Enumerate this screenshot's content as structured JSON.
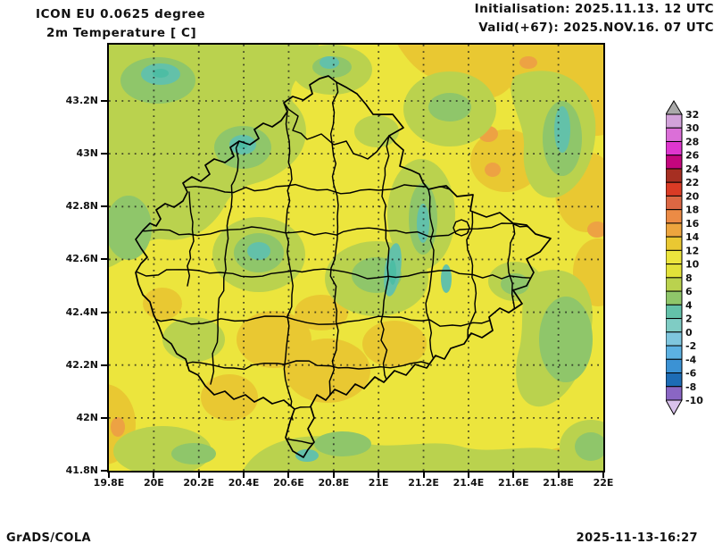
{
  "header": {
    "title_line1": "ICON EU 0.0625 degree",
    "title_line2": "2m Temperature [ C]",
    "init_line": "Initialisation: 2025.11.13. 12 UTC",
    "valid_line": "Valid(+67): 2025.NOV.16. 07 UTC"
  },
  "footer": {
    "left": "GrADS/COLA",
    "right": "2025-11-13-16:27"
  },
  "map": {
    "lat_ticks": [
      "43.2N",
      "43N",
      "42.8N",
      "42.6N",
      "42.4N",
      "42.2N",
      "42N",
      "41.8N"
    ],
    "lon_ticks": [
      "19.8E",
      "20E",
      "20.2E",
      "20.4E",
      "20.6E",
      "20.8E",
      "21E",
      "21.2E",
      "21.4E",
      "21.6E",
      "21.8E",
      "22E"
    ]
  },
  "palette": {
    "yellow_10_12": "#ece53d",
    "amber_12_14": "#e9c832",
    "orange_14_16": "#eda243",
    "yellow_green_6_8": "#bad24e",
    "green_4_6": "#8fc66a",
    "teal_2_4": "#63c1a9",
    "teal_dark_0_2": "#4dbda4"
  },
  "colorbar": {
    "boundary_labels": [
      "32",
      "30",
      "28",
      "26",
      "24",
      "22",
      "20",
      "18",
      "16",
      "14",
      "12",
      "10",
      "8",
      "6",
      "4",
      "2",
      "0",
      "-2",
      "-4",
      "-6",
      "-8",
      "-10"
    ],
    "segment_colors_top_to_bottom": [
      "#d2a2da",
      "#db6fd8",
      "#df36cf",
      "#c4067e",
      "#a62f22",
      "#da3b25",
      "#dc6743",
      "#ec8b45",
      "#eda53e",
      "#eac832",
      "#ece53d",
      "#e3e23a",
      "#bad24e",
      "#8fc66a",
      "#63c1a9",
      "#7fccc4",
      "#7fc6de",
      "#5cb1e2",
      "#3b92d4",
      "#1d6cb5",
      "#8a66c4"
    ],
    "above_max_color": "#a9a9a9",
    "below_min_color": "#d9c2ec"
  },
  "chart_data": {
    "type": "heatmap",
    "title": "2m Temperature [ C]",
    "model": "ICON EU 0.0625 degree",
    "initialisation": "2025.11.13. 12 UTC",
    "valid": "2025.NOV.16. 07 UTC",
    "lead_hours": 67,
    "xlabel": "longitude",
    "ylabel": "latitude",
    "lon_range_deg_e": [
      19.8,
      22.0
    ],
    "lat_range_deg_n": [
      41.8,
      43.41
    ],
    "grid": "dotted every 0.2 degree",
    "legend_position": "right",
    "colorbar_levels_c": [
      32,
      30,
      28,
      26,
      24,
      22,
      20,
      18,
      16,
      14,
      12,
      10,
      8,
      6,
      4,
      2,
      0,
      -2,
      -4,
      -6,
      -8,
      -10
    ],
    "field_summary": [
      {
        "region": "most lowland areas of Kosovo and surroundings",
        "approx_temp_c": "10-12"
      },
      {
        "region": "northwest quadrant and northern hills",
        "approx_temp_c": "6-8"
      },
      {
        "region": "green mountain patches (west-center, east, right edge)",
        "approx_temp_c": "4-6"
      },
      {
        "region": "coldest teal mountain spots (center ridge, NW corner)",
        "approx_temp_c": "0-4"
      },
      {
        "region": "warmer amber patches (top-right, center-south valleys)",
        "approx_temp_c": "12-14"
      },
      {
        "region": "isolated warm orange spots (northeast, right edge)",
        "approx_temp_c": "14-16"
      }
    ]
  }
}
